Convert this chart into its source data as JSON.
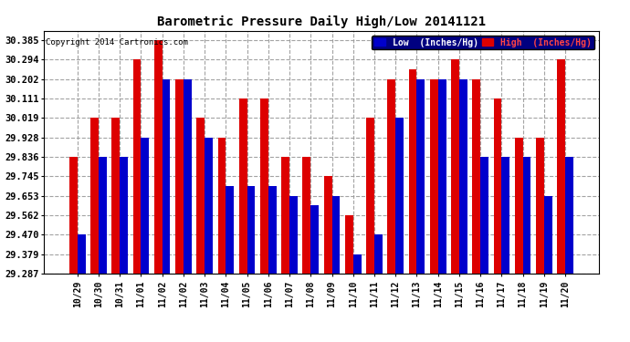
{
  "title": "Barometric Pressure Daily High/Low 20141121",
  "copyright": "Copyright 2014 Cartronics.com",
  "legend_low": "Low  (Inches/Hg)",
  "legend_high": "High  (Inches/Hg)",
  "dates": [
    "10/29",
    "10/30",
    "10/31",
    "11/01",
    "11/02",
    "11/02",
    "11/03",
    "11/04",
    "11/05",
    "11/06",
    "11/07",
    "11/08",
    "11/09",
    "11/10",
    "11/11",
    "11/12",
    "11/13",
    "11/14",
    "11/15",
    "11/16",
    "11/17",
    "11/18",
    "11/19",
    "11/20"
  ],
  "high_values": [
    29.836,
    30.019,
    30.019,
    30.294,
    30.385,
    30.202,
    30.019,
    29.928,
    30.111,
    30.111,
    29.836,
    29.836,
    29.745,
    29.562,
    30.019,
    30.202,
    30.248,
    30.202,
    30.294,
    30.202,
    30.111,
    29.928,
    29.928,
    30.294
  ],
  "low_values": [
    29.47,
    29.836,
    29.836,
    29.928,
    30.202,
    30.202,
    29.928,
    29.7,
    29.7,
    29.7,
    29.653,
    29.61,
    29.653,
    29.379,
    29.47,
    30.019,
    30.202,
    30.202,
    30.202,
    29.836,
    29.836,
    29.836,
    29.653,
    29.836
  ],
  "low_color": "#0000cc",
  "high_color": "#dd0000",
  "bg_color": "#ffffff",
  "plot_bg_color": "#ffffff",
  "grid_color": "#999999",
  "y_ticks": [
    29.287,
    29.379,
    29.47,
    29.562,
    29.653,
    29.745,
    29.836,
    29.928,
    30.019,
    30.111,
    30.202,
    30.294,
    30.385
  ],
  "ylim_min": 29.287,
  "ylim_max": 30.43,
  "bar_width": 0.38
}
